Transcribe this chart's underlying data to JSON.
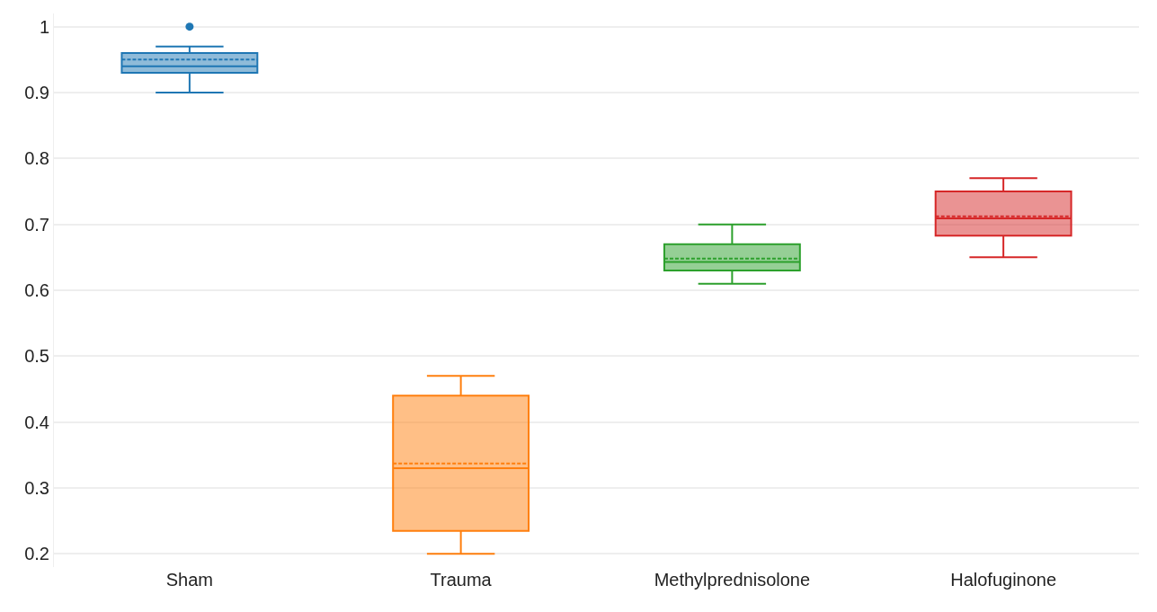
{
  "chart_data": {
    "type": "box",
    "categories": [
      "Sham",
      "Trauma",
      "Methylprednisolone",
      "Halofuginone"
    ],
    "colors": [
      "#1f77b4",
      "#ff7f0e",
      "#2ca02c",
      "#d62728"
    ],
    "boxes": [
      {
        "low": 0.9,
        "q1": 0.93,
        "median": 0.94,
        "q3": 0.96,
        "high": 0.97,
        "mean": 0.95,
        "outliers": [
          1.0
        ]
      },
      {
        "low": 0.2,
        "q1": 0.235,
        "median": 0.33,
        "q3": 0.44,
        "high": 0.47,
        "mean": 0.337
      },
      {
        "low": 0.61,
        "q1": 0.63,
        "median": 0.643,
        "q3": 0.67,
        "high": 0.7,
        "mean": 0.648
      },
      {
        "low": 0.65,
        "q1": 0.683,
        "median": 0.709,
        "q3": 0.75,
        "high": 0.77,
        "mean": 0.712
      }
    ],
    "ylim": [
      0.18,
      1.02
    ],
    "yticks": [
      0.2,
      0.3,
      0.4,
      0.5,
      0.6,
      0.7,
      0.8,
      0.9,
      1
    ],
    "grid": "y"
  }
}
